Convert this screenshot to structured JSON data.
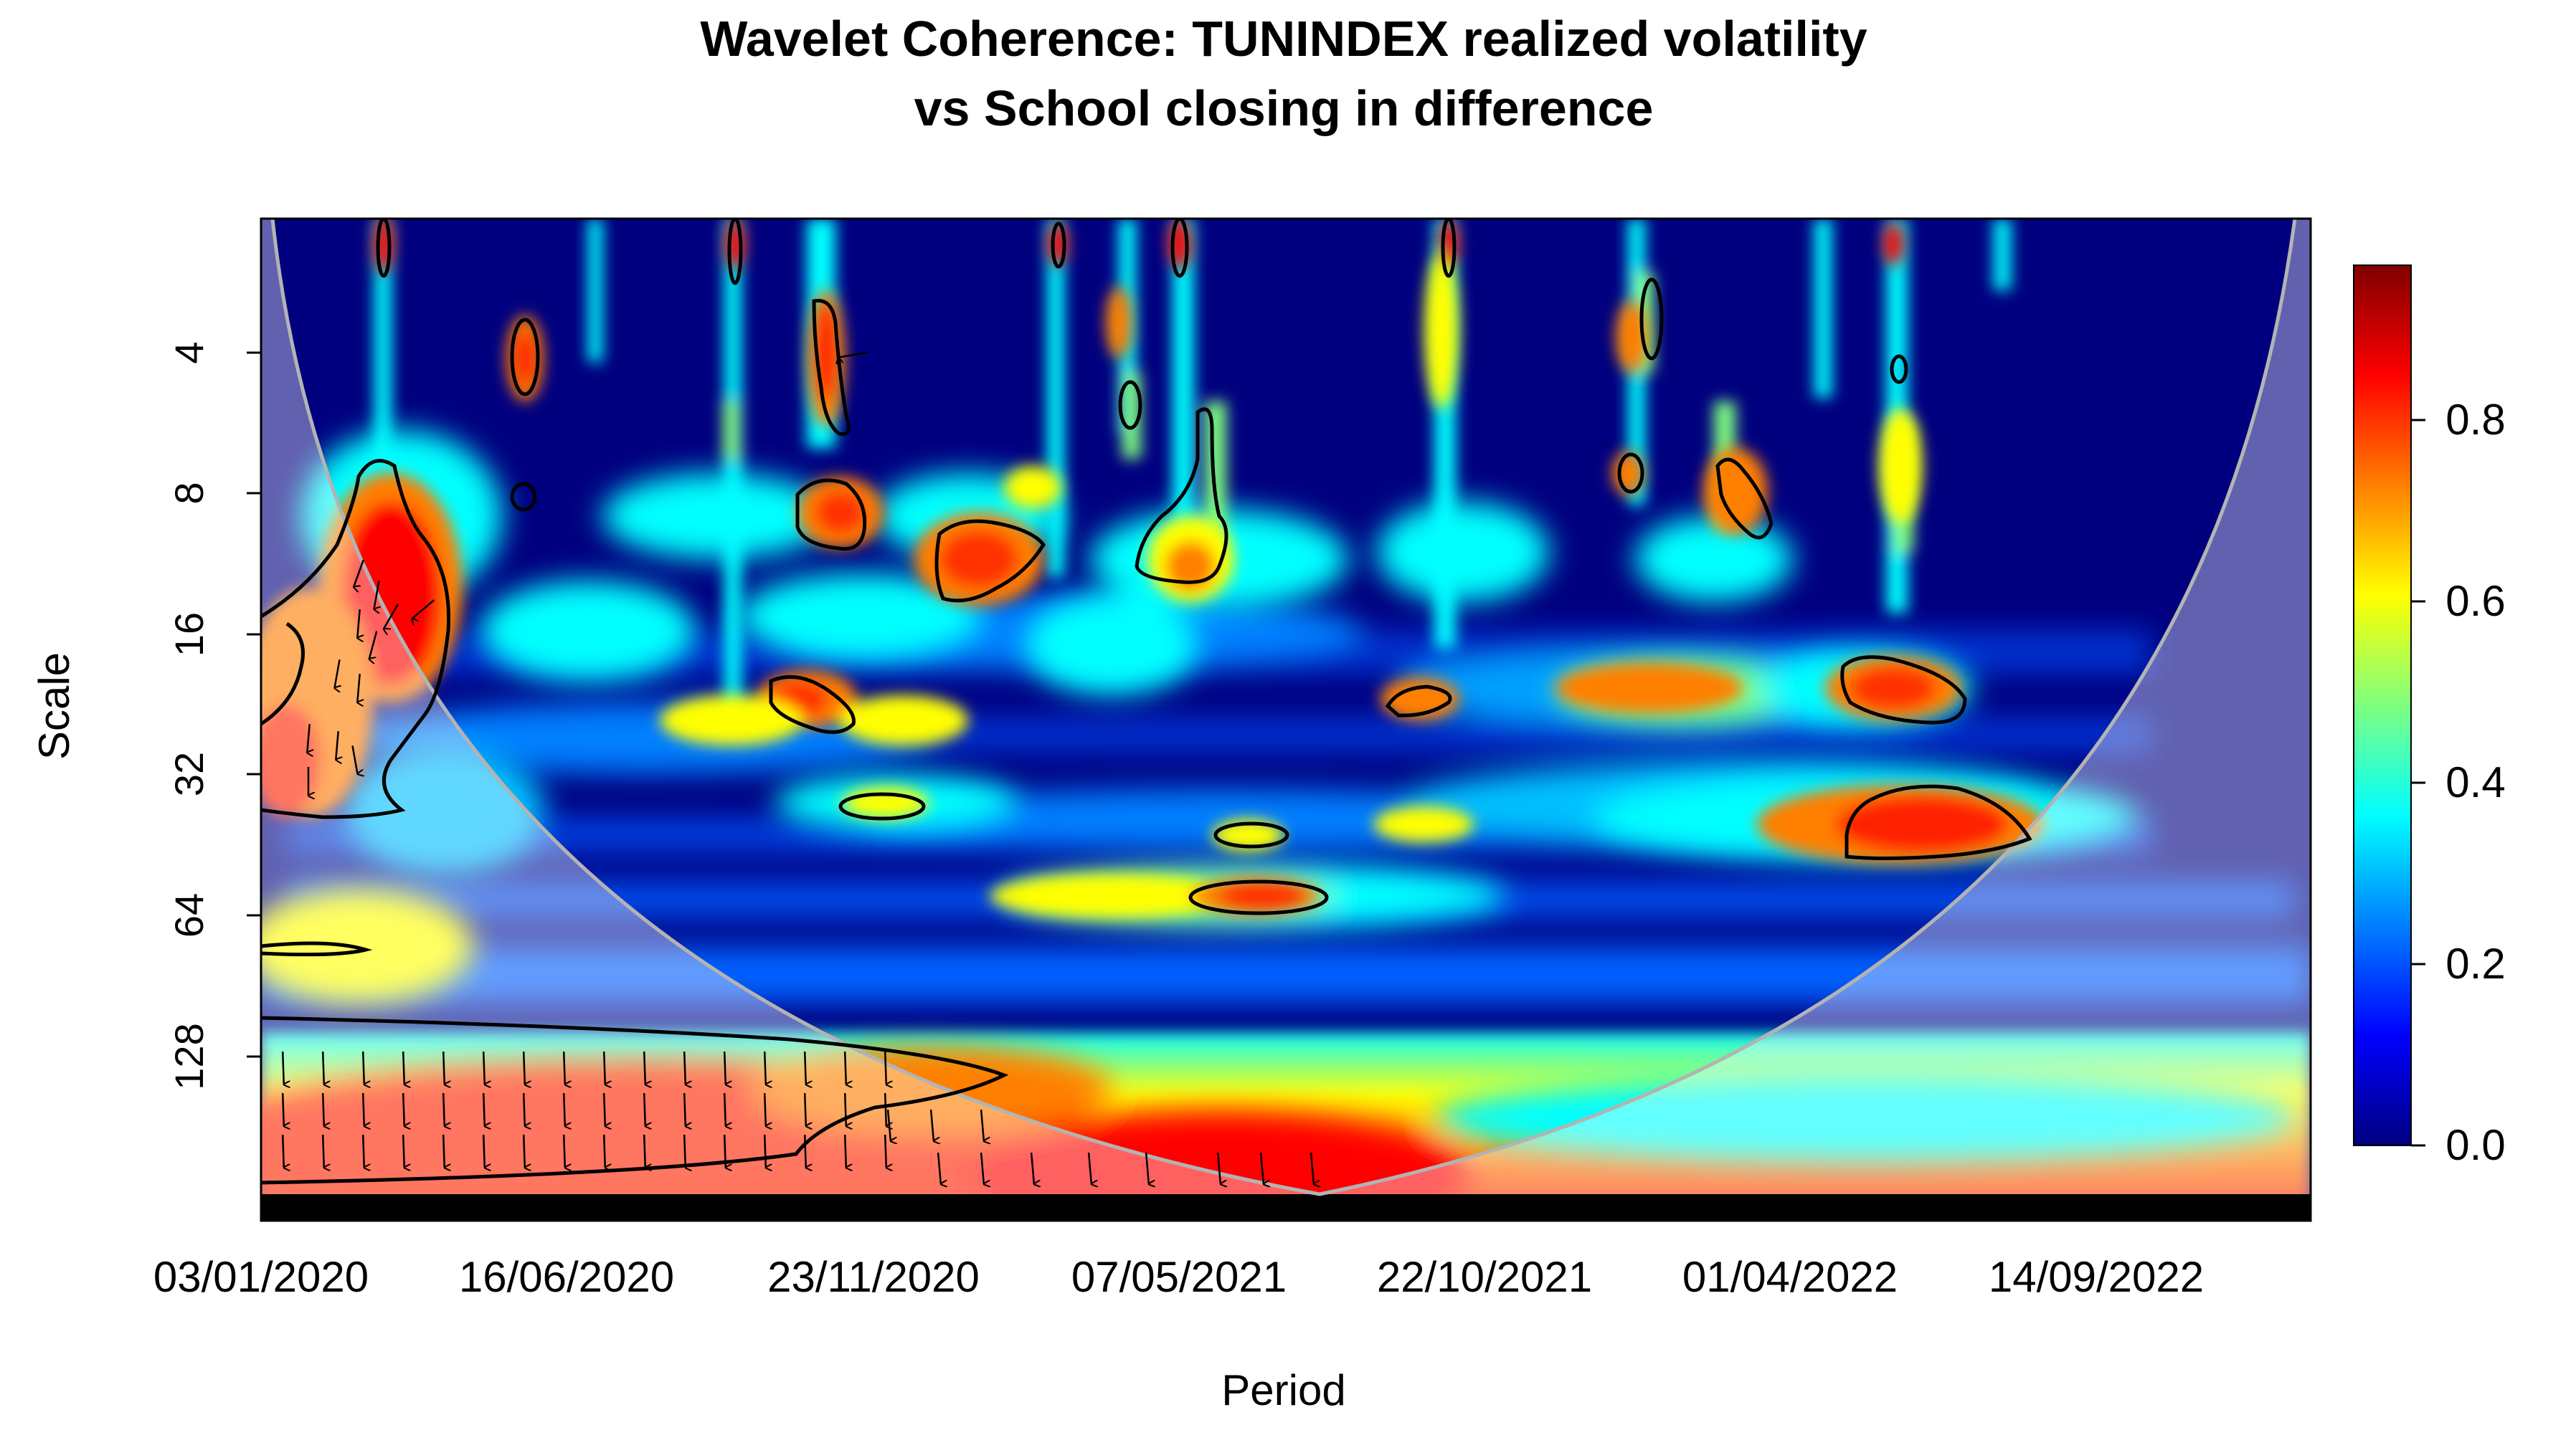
{
  "chart_data": {
    "type": "heatmap",
    "title": [
      "Wavelet Coherence: TUNINDEX realized volatility",
      "vs School closing in difference"
    ],
    "xlabel": "Period",
    "ylabel": "Scale",
    "x_tick_labels": [
      "03/01/2020",
      "16/06/2020",
      "23/11/2020",
      "07/05/2021",
      "22/10/2021",
      "01/04/2022",
      "14/09/2022"
    ],
    "y_tick_labels": [
      "4",
      "8",
      "16",
      "32",
      "64",
      "128"
    ],
    "y_scale": "log2",
    "y_range": [
      2,
      256
    ],
    "y_reversed": true,
    "colorbar_ticks": [
      "0.0",
      "0.2",
      "0.4",
      "0.6",
      "0.8"
    ],
    "colorbar_range": [
      0,
      0.97
    ],
    "colors": {
      "colormap": [
        "#00007f",
        "#0000ff",
        "#007fff",
        "#00ffff",
        "#7fff7f",
        "#ffff00",
        "#ff7f00",
        "#ff0000",
        "#7f0000"
      ],
      "cone_of_influence_line": "#b3b3b3",
      "outside_cone_shade": "#ffffff",
      "contour": "#000000"
    },
    "significance_contours": "black outlines at 5% significance level",
    "phase_arrows": true,
    "cone_of_influence": true
  }
}
